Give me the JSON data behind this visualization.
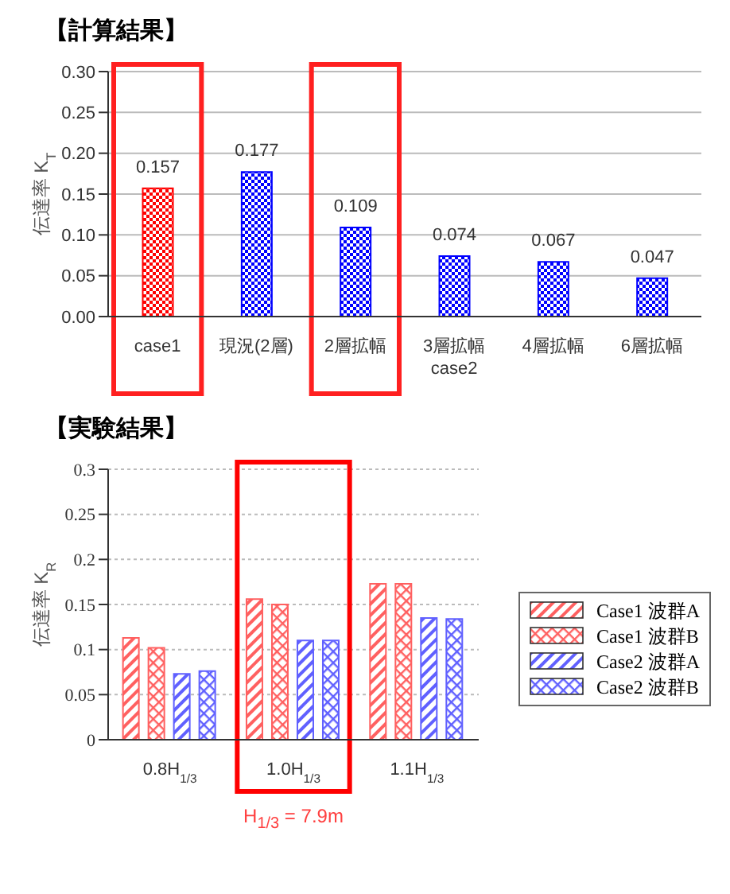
{
  "chart_data": [
    {
      "type": "bar",
      "title": "【計算結果】",
      "ylabel": "伝達率 K$_{T}$",
      "categories": [
        "case1",
        "現況(2層)",
        "2層拡幅",
        "3層拡幅",
        "4層拡幅",
        "6層拡幅"
      ],
      "values": [
        0.157,
        0.177,
        0.109,
        0.074,
        0.067,
        0.047
      ],
      "colors": [
        "#ff0000",
        "#0000ff",
        "#0000ff",
        "#0000ff",
        "#0000ff",
        "#0000ff"
      ],
      "data_labels": true,
      "ylim": [
        0,
        0.3
      ],
      "yticks": [
        {
          "value": 0,
          "label": "0.00"
        },
        {
          "value": 0.05,
          "label": "0.05"
        },
        {
          "value": 0.1,
          "label": "0.10"
        },
        {
          "value": 0.15,
          "label": "0.15"
        },
        {
          "value": 0.2,
          "label": "0.20"
        },
        {
          "value": 0.25,
          "label": "0.25"
        },
        {
          "value": 0.3,
          "label": "0.30"
        }
      ],
      "grid": "y",
      "legend": false,
      "annotations": [
        "case2"
      ],
      "bands": [
        {
          "axis": "x",
          "from": "case1",
          "to": "case1",
          "color": "#ff2020"
        },
        {
          "axis": "x",
          "from": "2層拡幅",
          "to": "2層拡幅",
          "color": "#ff2020"
        }
      ]
    },
    {
      "type": "bar",
      "title": "【実験結果】",
      "ylabel": "伝達率 K$_{R}$",
      "categories": [
        "0.8H$_{1/3}$",
        "1.0H$_{1/3}$",
        "1.1H$_{1/3}$"
      ],
      "series": [
        {
          "name": "Case1 波群A",
          "color": "#ff6060",
          "values": [
            0.113,
            0.156,
            0.173
          ]
        },
        {
          "name": "Case1 波群B",
          "color": "#ff6060",
          "values": [
            0.102,
            0.15,
            0.173
          ]
        },
        {
          "name": "Case2 波群A",
          "color": "#6060ff",
          "values": [
            0.073,
            0.11,
            0.135
          ]
        },
        {
          "name": "Case2 波群B",
          "color": "#6060ff",
          "values": [
            0.076,
            0.11,
            0.134
          ]
        }
      ],
      "ylim": [
        0,
        0.3
      ],
      "yticks": [
        0,
        0.05,
        0.1,
        0.15,
        0.2,
        0.25,
        0.3
      ],
      "grid": "y",
      "legend": "right",
      "annotations": [
        "H$_{1/3}$ = 7.9m"
      ],
      "bands": [
        {
          "axis": "x",
          "from": "1.0H$_{1/3}$",
          "to": "1.0H$_{1/3}$",
          "color": "#ff0000"
        }
      ]
    }
  ]
}
